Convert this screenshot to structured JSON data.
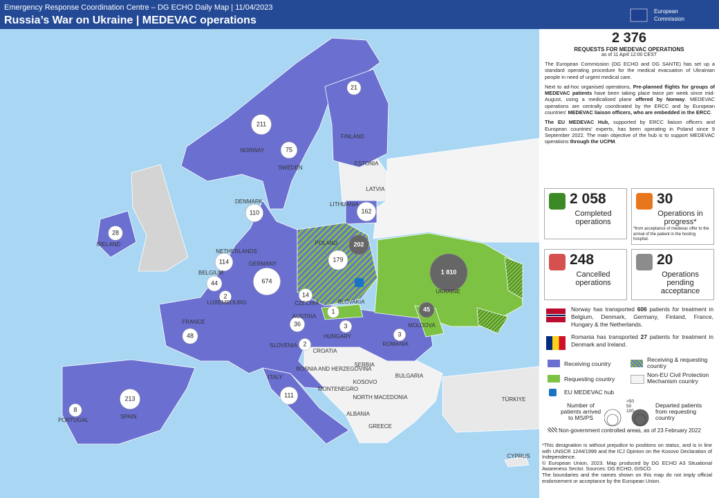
{
  "header": {
    "top_line": "Emergency Response Coordination Centre – DG ECHO Daily Map | 11/04/2023",
    "title": "Russia’s War on Ukraine | MEDEVAC operations",
    "logo_line1": "European",
    "logo_line2": "Commission"
  },
  "map": {
    "countries": [
      "NORWAY",
      "SWEDEN",
      "FINLAND",
      "ESTONIA",
      "LATVIA",
      "LITHUANIA",
      "DENMARK",
      "IRELAND",
      "NETHERLANDS",
      "GERMANY",
      "BELGIUM",
      "LUXEMBOURG",
      "POLAND",
      "CZECHIA",
      "SLOVAKIA",
      "UKRAINE",
      "AUSTRIA",
      "HUNGARY",
      "MOLDOVA",
      "ROMANIA",
      "FRANCE",
      "SLOVENIA",
      "CROATIA",
      "SERBIA",
      "BOSNIA AND HERZEGOVINA",
      "KOSOVO",
      "MONTENEGRO",
      "BULGARIA",
      "NORTH MACEDONIA",
      "ALBANIA",
      "GREECE",
      "ITALY",
      "SPAIN",
      "PORTUGAL",
      "TÜRKIYE",
      "CYPRUS"
    ],
    "received_patients": [
      211,
      75,
      21,
      110,
      162,
      28,
      114,
      674,
      44,
      2,
      179,
      14,
      36,
      48,
      2,
      3,
      3,
      1,
      111,
      213,
      8
    ],
    "departed_patients": [
      202,
      {
        "value": 1810,
        "label": "1 810"
      },
      45
    ]
  },
  "panel": {
    "total": "2 376",
    "total_label": "REQUESTS FOR MEDEVAC OPERATIONS",
    "as_of": "as of 11 April 12:00 CEST",
    "paragraphs": [
      [
        {
          "text": "The European Commission (DG ECHO and DG SANTE) has set up a standard operating procedure for the medical evacuation of Ukrainian people in need of urgent medical care."
        }
      ],
      [
        {
          "text": "Next to ad-hoc organised operations, "
        },
        {
          "text": "Pre-planned flights for groups of MEDEVAC patients",
          "bold": true
        },
        {
          "text": " have been taking place twice per week since mid-August, using a medicalised plane "
        },
        {
          "text": "offered by Norway",
          "bold": true
        },
        {
          "text": ". MEDEVAC operations are centrally coordinated by the ERCC and by European countries' "
        },
        {
          "text": "MEDEVAC liaison officers, who are embedded in the ERCC",
          "bold": true
        },
        {
          "text": "."
        }
      ],
      [
        {
          "text": "The EU MEDEVAC Hub,",
          "bold": true
        },
        {
          "text": " supported by ERCC liaison officers and European countries' experts, has been operating in Poland since 9 September 2022. The main objective of the hub is to support MEDEVAC operations "
        },
        {
          "text": "through the UCPM",
          "bold": true
        },
        {
          "text": "."
        }
      ]
    ],
    "stats": [
      {
        "number": "2 058",
        "label": "Completed operations",
        "color": "#3c8a25"
      },
      {
        "number": "30",
        "label": "Operations in progress*",
        "note": "*from acceptance of medevac offer to the arrival of the patient in the hosting hospital.",
        "color": "#e8761c"
      },
      {
        "number": "248",
        "label": "Cancelled operations",
        "color": "#d65050"
      },
      {
        "number": "20",
        "label": "Operations pending acceptance",
        "color": "#8c8c8c"
      }
    ],
    "flag_notes": [
      [
        {
          "text": "Norway has transported "
        },
        {
          "text": "606",
          "bold": true
        },
        {
          "text": " patients for treatment in Belgium, Denmark, Germany, Finland, France, Hungary & the Netherlands."
        }
      ],
      [
        {
          "text": "Romania has transported "
        },
        {
          "text": "27",
          "bold": true
        },
        {
          "text": " patients for treatment in Denmark and Ireland."
        }
      ]
    ],
    "legend": {
      "receiving": "Receiving country",
      "both": "Receiving & requesting country",
      "requesting": "Requesting country",
      "non_eu": "Non-EU Civil Protection Mechanism country",
      "hub": "EU MEDEVAC hub",
      "arrived": "Number of patients arrived to MS/PS",
      "departed": "Departed patients from requesting country",
      "scale": [
        ">50",
        "50",
        "100"
      ],
      "ngca": "Non-government controlled areas, as of 23 February 2022"
    },
    "footer": [
      "*This designation is without prejudice to positions on status, and is in line with UNSCR 1244/1999 and the ICJ Opinion on the Kosovo Declaration of Independence.",
      "© European Union, 2023. Map produced by DG ECHO A3 Situational Awareness Sector. Sources: DG ECHO, GISCO.",
      "The boundaries and the names shown on this map do not imply official endorsement or acceptance by the European Union."
    ]
  }
}
